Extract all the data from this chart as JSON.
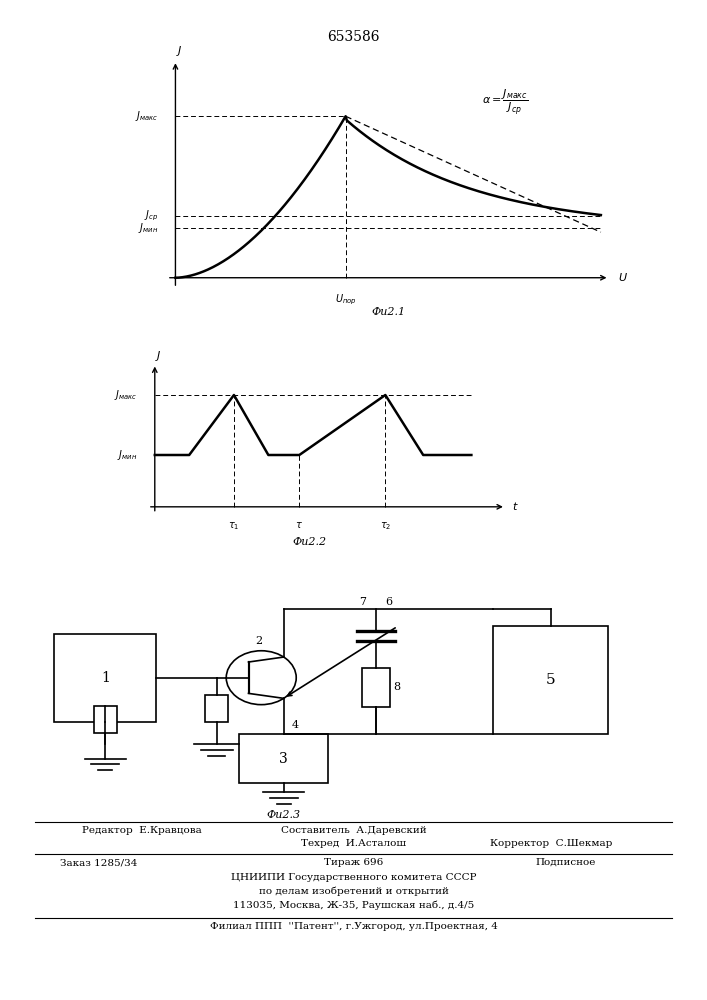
{
  "title": "653586",
  "title_fontsize": 10,
  "fig1_label": "Фu2.1",
  "fig2_label": "Фu2.2",
  "fig3_label": "Фu2.3",
  "bg_color": "#ffffff"
}
